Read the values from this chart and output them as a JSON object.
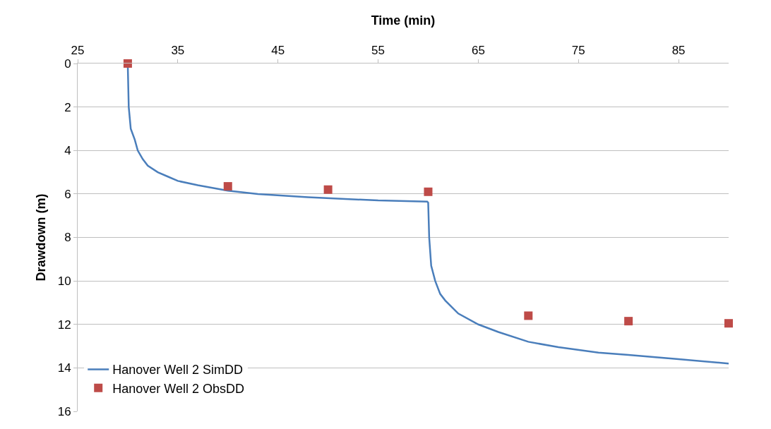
{
  "chart_data": {
    "type": "line",
    "xlabel": "Time (min)",
    "ylabel": "Drawdown (m)",
    "xlim": [
      25,
      90
    ],
    "xticks": [
      25,
      35,
      45,
      55,
      65,
      75,
      85
    ],
    "ylim": [
      16,
      0
    ],
    "yticks": [
      0,
      2,
      4,
      6,
      8,
      10,
      12,
      14,
      16
    ],
    "grid": "y",
    "legend": "bottom left",
    "series": [
      {
        "name": "Hanover Well 2 SimDD",
        "color": "#4a7ebb",
        "marker": "none",
        "line_style": "solid",
        "x": [
          30,
          30.1,
          30.3,
          30.7,
          31,
          31.5,
          32,
          33,
          34,
          35,
          37,
          40,
          43,
          48,
          55,
          59.9,
          60,
          60.1,
          60.3,
          60.7,
          61.2,
          61.7,
          63,
          65,
          67,
          70,
          73,
          77,
          80,
          85,
          90
        ],
        "values": [
          0,
          2,
          3,
          3.5,
          4,
          4.4,
          4.7,
          5,
          5.2,
          5.4,
          5.6,
          5.85,
          6,
          6.15,
          6.3,
          6.35,
          6.4,
          8,
          9.3,
          10,
          10.6,
          10.9,
          11.5,
          12,
          12.35,
          12.8,
          13.05,
          13.3,
          13.4,
          13.6,
          13.8
        ]
      },
      {
        "name": "Hanover Well 2 ObsDD",
        "type": "scatter",
        "color": "#be4b48",
        "marker": "square",
        "x": [
          30,
          40,
          50,
          60,
          70,
          80,
          90
        ],
        "values": [
          0,
          5.65,
          5.8,
          5.9,
          11.6,
          11.85,
          11.95
        ]
      }
    ]
  }
}
